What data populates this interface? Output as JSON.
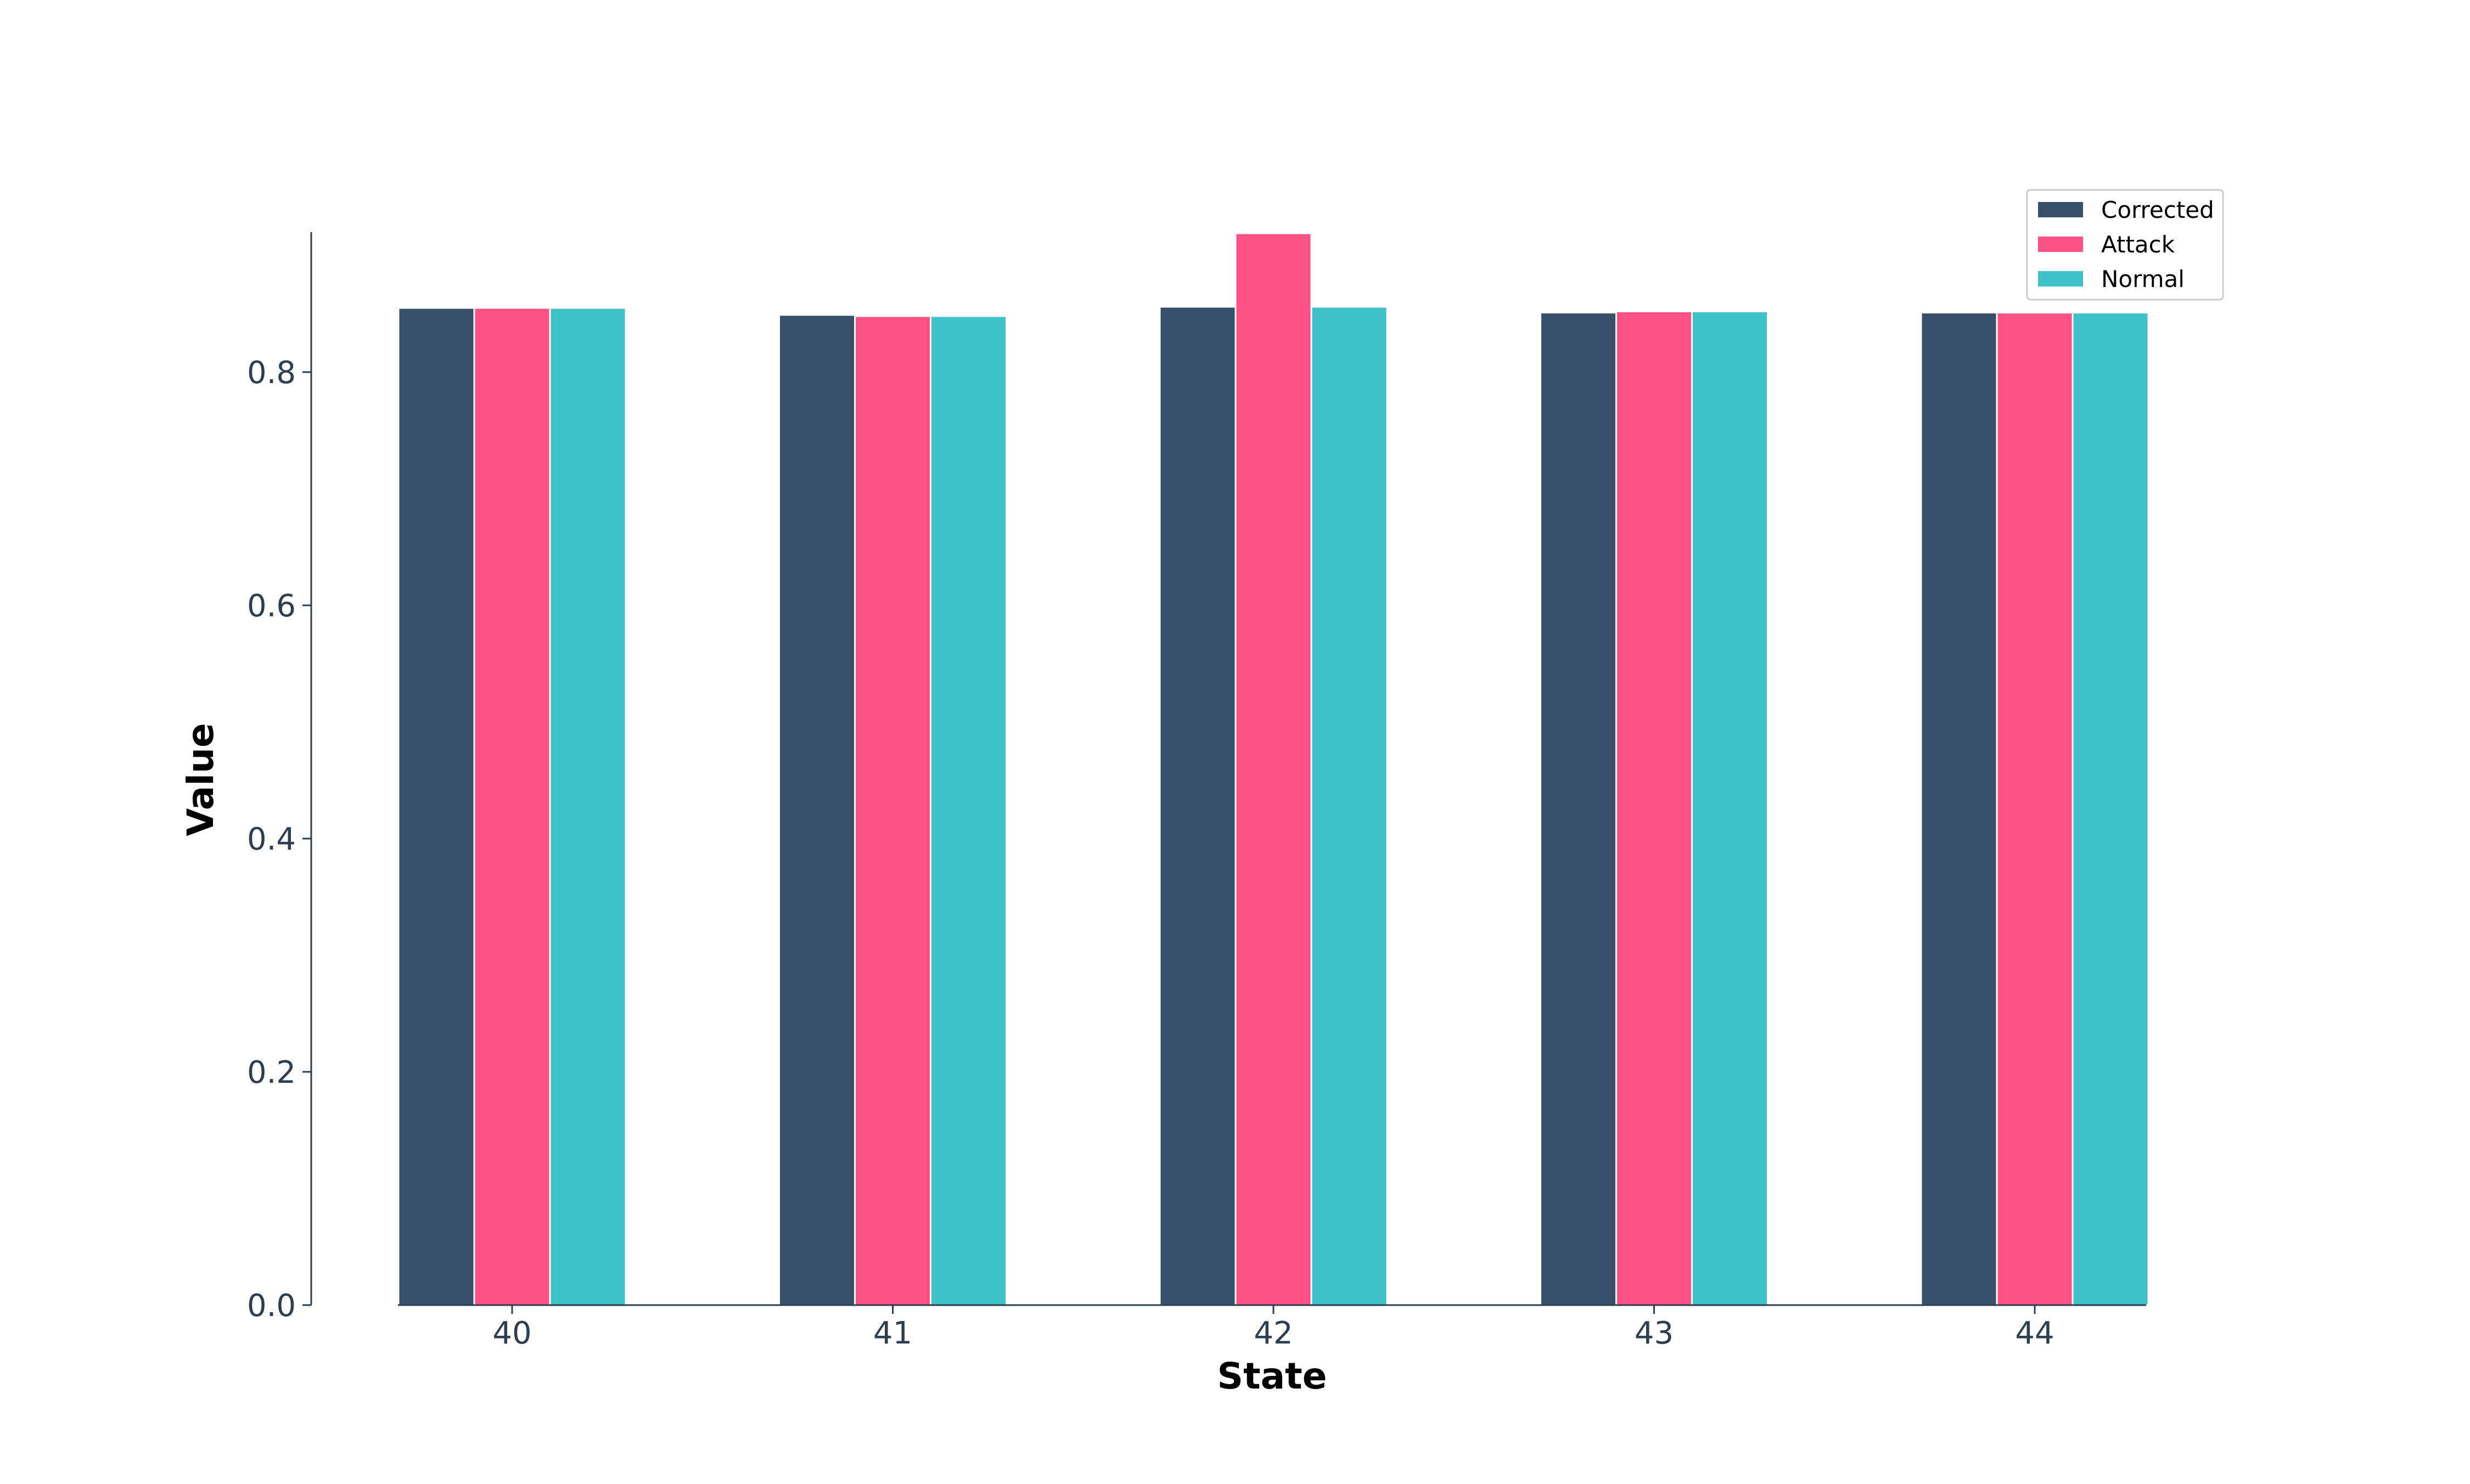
{
  "chart_data": {
    "type": "bar",
    "title": "",
    "xlabel": "State",
    "ylabel": "Value",
    "categories": [
      "40",
      "41",
      "42",
      "43",
      "44"
    ],
    "series": [
      {
        "name": "Corrected",
        "color": "#364f6b",
        "values": [
          0.855,
          0.849,
          0.856,
          0.851,
          0.851
        ]
      },
      {
        "name": "Attack",
        "color": "#fc5185",
        "values": [
          0.855,
          0.848,
          0.919,
          0.852,
          0.851
        ]
      },
      {
        "name": "Normal",
        "color": "#3fc1c9",
        "values": [
          0.855,
          0.848,
          0.856,
          0.852,
          0.851
        ]
      }
    ],
    "ylim": [
      0,
      0.92
    ],
    "yticks": [
      "0.0",
      "0.2",
      "0.4",
      "0.6",
      "0.8"
    ],
    "grid": false,
    "legend_position": "top-right",
    "axis_color": "#2c3e50",
    "label_color": "#000000"
  }
}
